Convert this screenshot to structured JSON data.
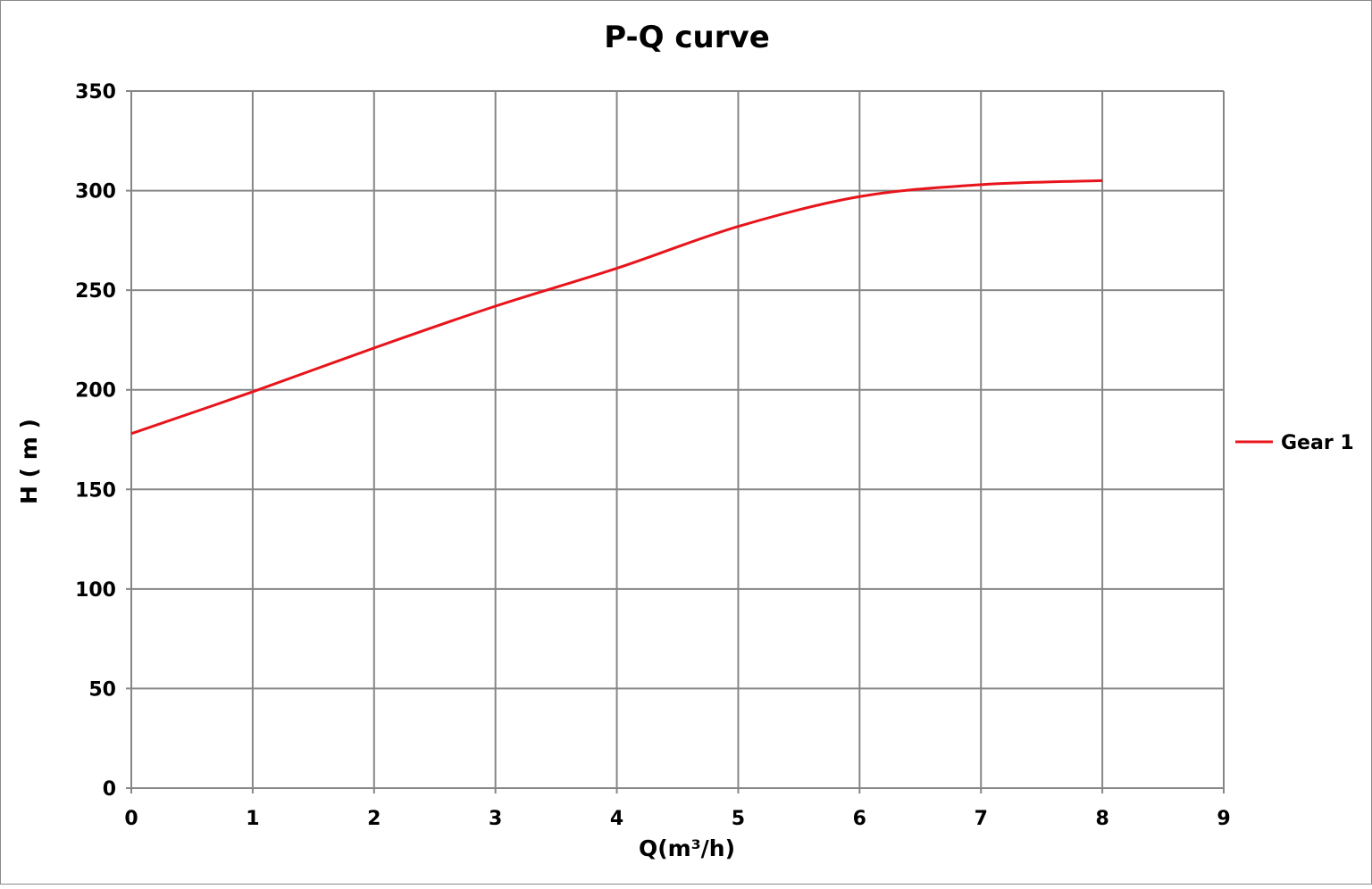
{
  "chart_data": {
    "type": "line",
    "title": "P-Q  curve",
    "xlabel": "Q(m³/h)",
    "ylabel": "H ( m )",
    "xlim": [
      0,
      9
    ],
    "ylim": [
      0,
      350
    ],
    "xticks": [
      0,
      1,
      2,
      3,
      4,
      5,
      6,
      7,
      8,
      9
    ],
    "yticks": [
      0,
      50,
      100,
      150,
      200,
      250,
      300,
      350
    ],
    "grid": true,
    "legend_position": "right",
    "series": [
      {
        "name": "Gear 1",
        "color": "#e8141b",
        "x": [
          0,
          1,
          2,
          3,
          4,
          5,
          6,
          7,
          8
        ],
        "y": [
          178,
          199,
          221,
          242,
          261,
          282,
          297,
          303,
          305
        ]
      }
    ]
  }
}
